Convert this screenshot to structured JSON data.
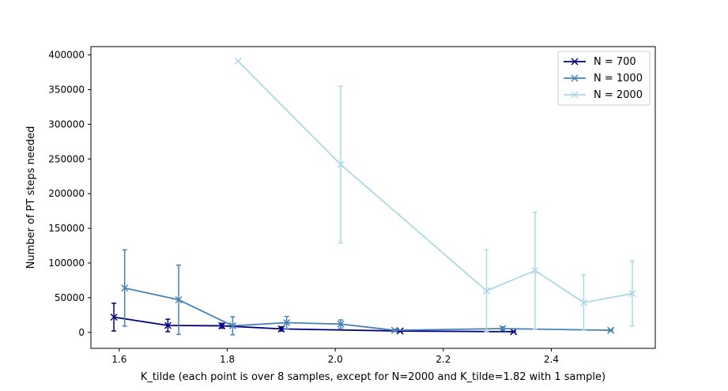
{
  "chart_data": {
    "type": "line",
    "title": "",
    "xlabel": "K_tilde (each point is over 8 samples, except for N=2000 and K_tilde=1.82 with 1 sample)",
    "ylabel": "Number of PT steps needed",
    "xlim": [
      1.5475,
      2.5925
    ],
    "ylim": [
      -23000,
      412000
    ],
    "xticks": [
      1.6,
      1.8,
      2.0,
      2.2,
      2.4
    ],
    "xtick_labels": [
      "1.6",
      "1.8",
      "2.0",
      "2.2",
      "2.4"
    ],
    "yticks": [
      0,
      50000,
      100000,
      150000,
      200000,
      250000,
      300000,
      350000,
      400000
    ],
    "ytick_labels": [
      "0",
      "50000",
      "100000",
      "150000",
      "200000",
      "250000",
      "300000",
      "350000",
      "400000"
    ],
    "grid": false,
    "legend_position": "top-right",
    "series": [
      {
        "name": "N = 700",
        "color": "#000080",
        "marker": "x",
        "x": [
          1.59,
          1.69,
          1.79,
          1.9,
          2.12,
          2.33
        ],
        "y": [
          22000,
          10000,
          9500,
          5000,
          2000,
          1000
        ],
        "yerr": [
          20000,
          9000,
          3500,
          3000,
          1000,
          500
        ]
      },
      {
        "name": "N = 1000",
        "color": "#4682b4",
        "marker": "x",
        "x": [
          1.61,
          1.71,
          1.81,
          1.91,
          2.01,
          2.11,
          2.31,
          2.51
        ],
        "y": [
          64000,
          47000,
          9500,
          14000,
          12000,
          3000,
          5500,
          3000
        ],
        "yerr": [
          55000,
          50000,
          13000,
          9000,
          6000,
          1500,
          2500,
          1000
        ]
      },
      {
        "name": "N = 2000",
        "color": "#add8e6",
        "marker": "x",
        "x": [
          1.82,
          2.01,
          2.28,
          2.37,
          2.46,
          2.55
        ],
        "y": [
          391000,
          242000,
          60000,
          89000,
          43000,
          56000
        ],
        "yerr": [
          0,
          113000,
          59000,
          84000,
          40000,
          47000
        ]
      }
    ]
  }
}
